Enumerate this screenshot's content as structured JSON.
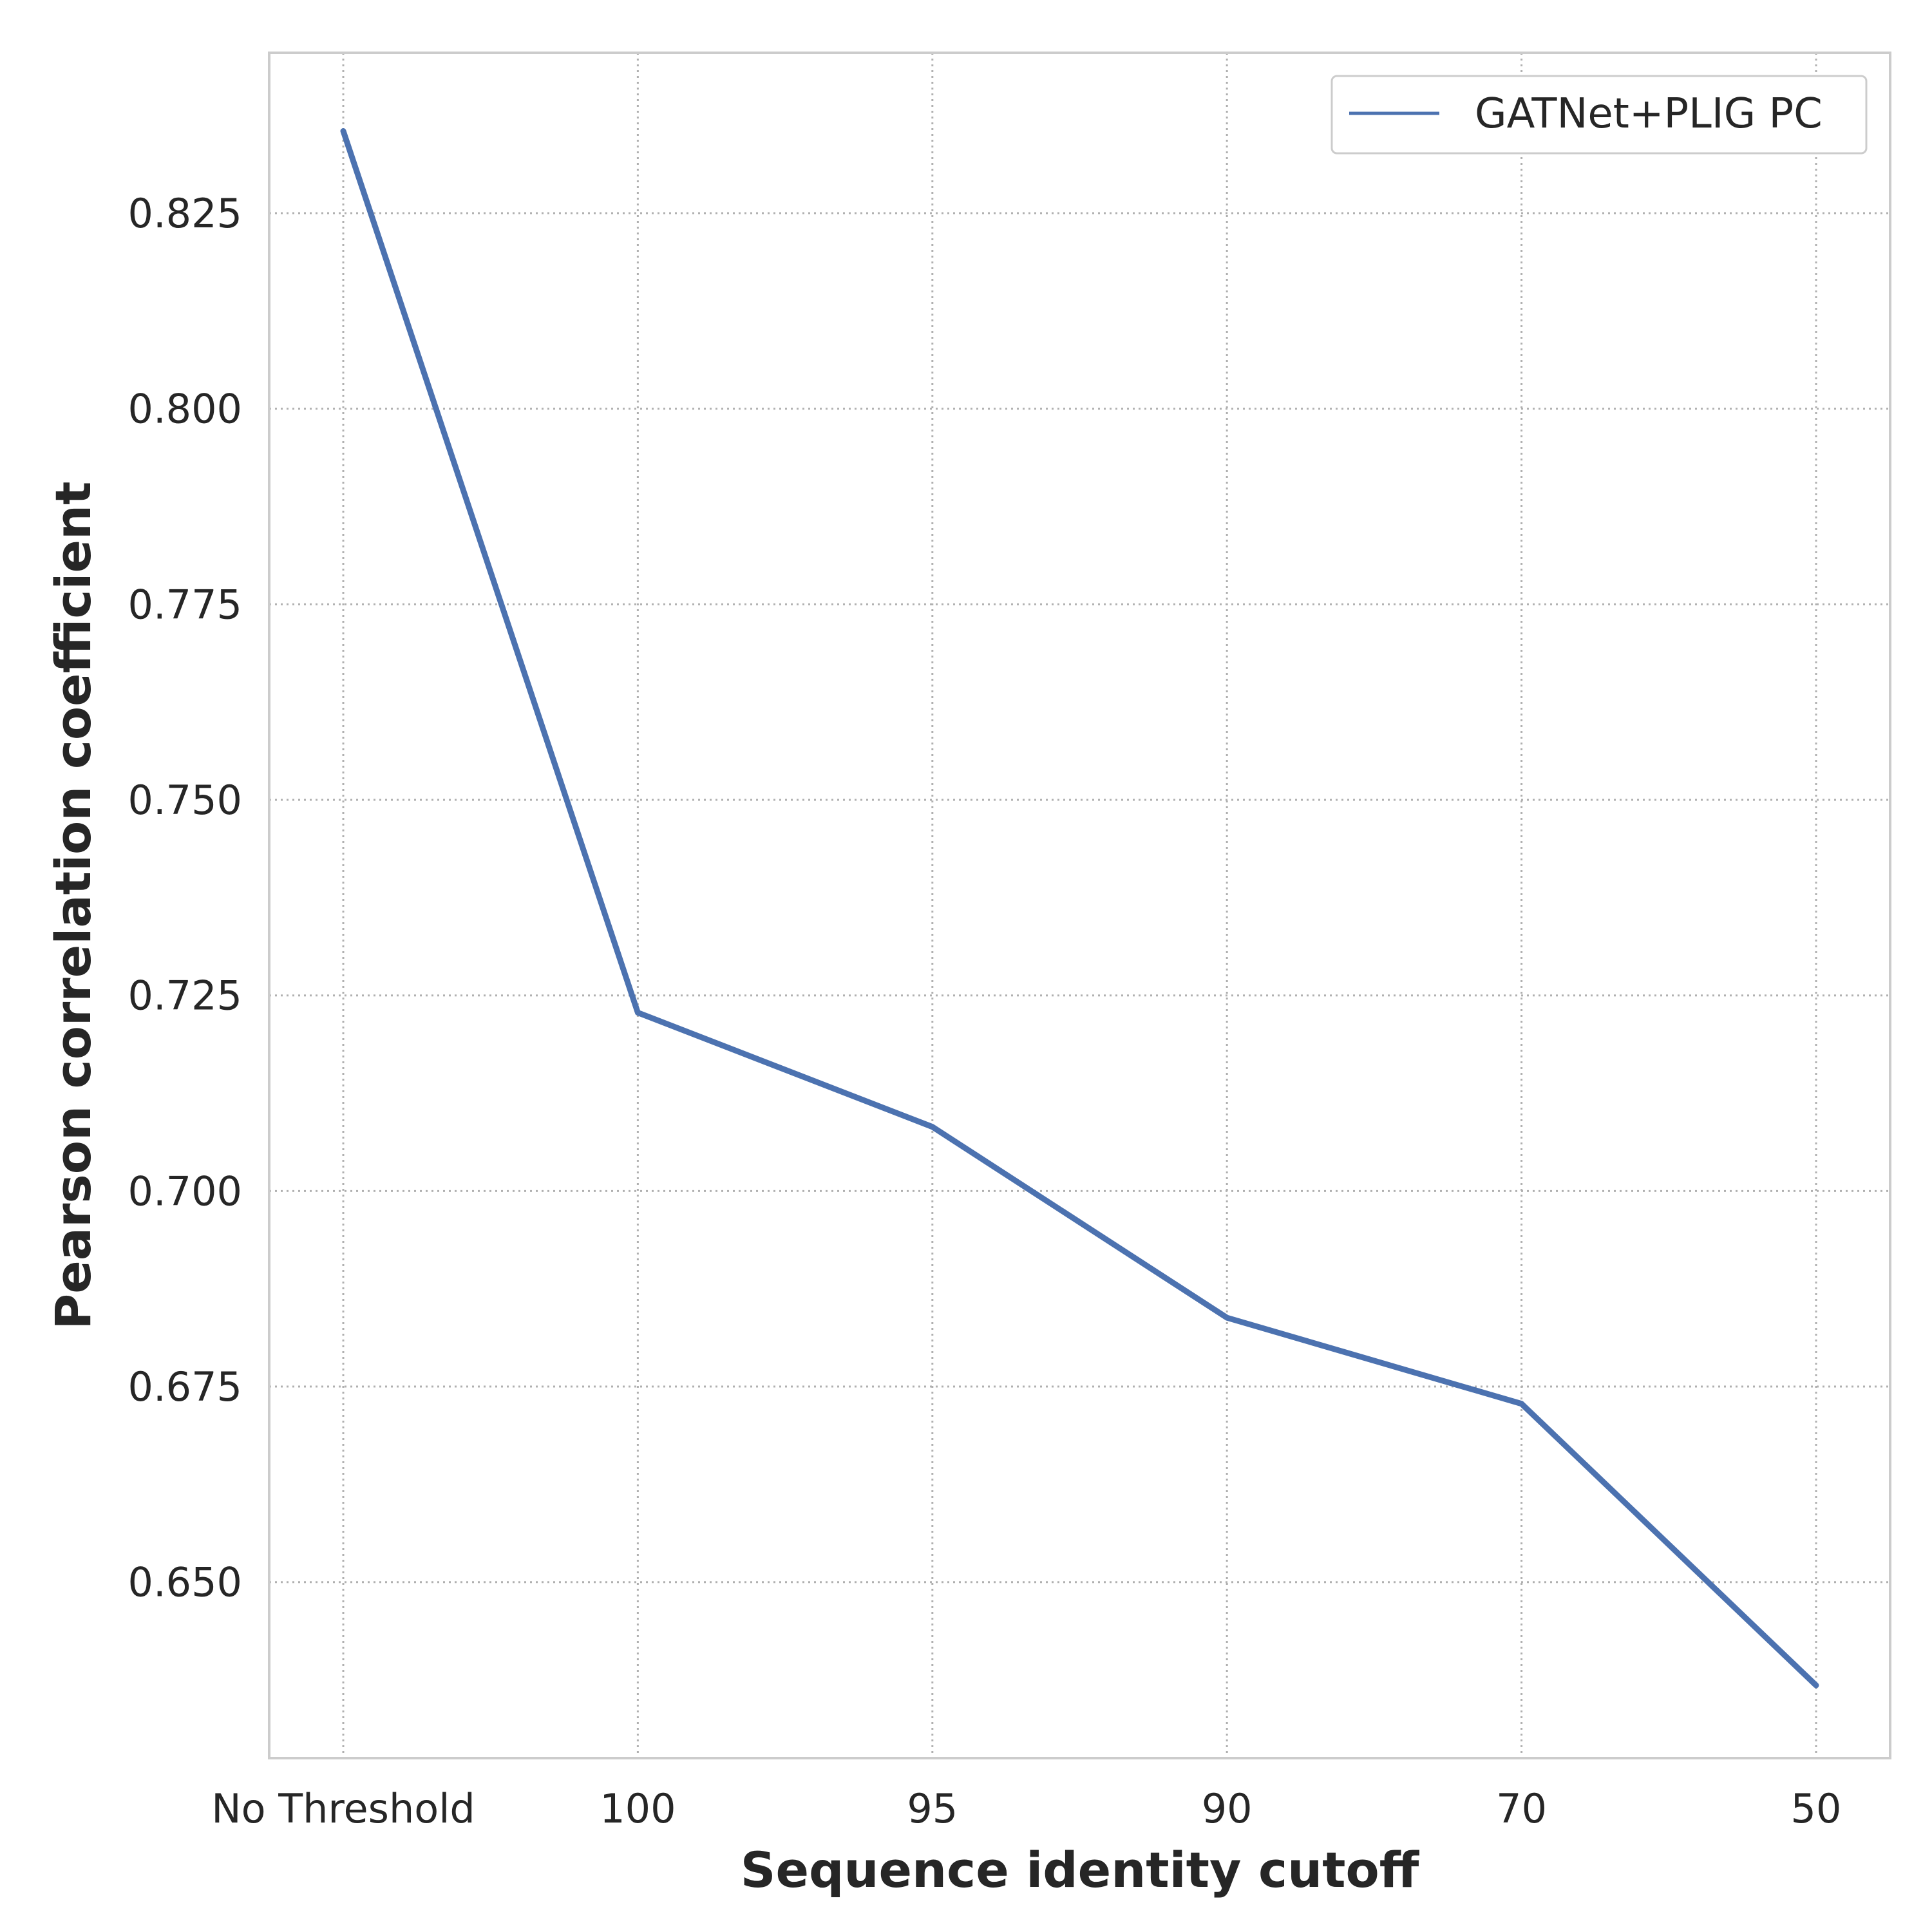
{
  "chart_data": {
    "type": "line",
    "categories": [
      "No Threshold",
      "100",
      "95",
      "90",
      "70",
      "50"
    ],
    "series": [
      {
        "name": "GATNet+PLIG PC",
        "values": [
          0.8355,
          0.7228,
          0.7082,
          0.6838,
          0.6728,
          0.6368
        ],
        "color": "#4c72b0"
      }
    ],
    "xlabel": "Sequence identity cutoff",
    "ylabel": "Pearson correlation coefficient",
    "ylim": [
      0.6275,
      0.8455
    ],
    "yticks": [
      "0.650",
      "0.675",
      "0.700",
      "0.725",
      "0.750",
      "0.775",
      "0.800",
      "0.825"
    ],
    "ytick_values": [
      0.65,
      0.675,
      0.7,
      0.725,
      0.75,
      0.775,
      0.8,
      0.825
    ],
    "grid": true,
    "grid_style": "dotted",
    "legend_position": "top-right"
  }
}
